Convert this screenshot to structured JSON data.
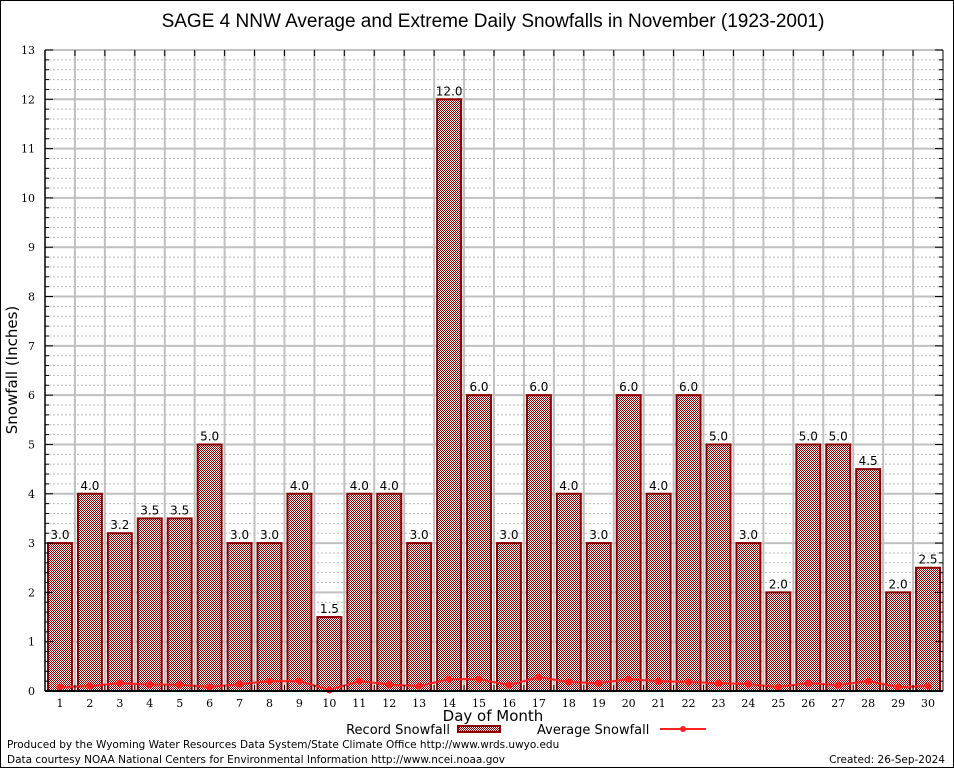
{
  "chart_data": {
    "type": "bar",
    "title": "SAGE 4 NNW Average and Extreme Daily Snowfalls in November (1923-2001)",
    "xlabel": "Day of Month",
    "ylabel": "Snowfall (Inches)",
    "ylim": [
      0,
      13
    ],
    "yticks": [
      "0",
      "1",
      "2",
      "3",
      "4",
      "5",
      "6",
      "7",
      "8",
      "9",
      "10",
      "11",
      "12",
      "13"
    ],
    "grid": true,
    "legend_position": "bottom",
    "categories": [
      "1",
      "2",
      "3",
      "4",
      "5",
      "6",
      "7",
      "8",
      "9",
      "10",
      "11",
      "12",
      "13",
      "14",
      "15",
      "16",
      "17",
      "18",
      "19",
      "20",
      "21",
      "22",
      "23",
      "24",
      "25",
      "26",
      "27",
      "28",
      "29",
      "30"
    ],
    "series": [
      {
        "name": "Record Snowfall",
        "type": "bar",
        "color": "#8b0000",
        "values": [
          3.0,
          4.0,
          3.2,
          3.5,
          3.5,
          5.0,
          3.0,
          3.0,
          4.0,
          1.5,
          4.0,
          4.0,
          3.0,
          12.0,
          6.0,
          3.0,
          6.0,
          4.0,
          3.0,
          6.0,
          4.0,
          6.0,
          5.0,
          3.0,
          2.0,
          5.0,
          5.0,
          4.5,
          2.0,
          2.5
        ],
        "labels": [
          "3.0",
          "4.0",
          "3.2",
          "3.5",
          "3.5",
          "5.0",
          "3.0",
          "3.0",
          "4.0",
          "1.5",
          "4.0",
          "4.0",
          "3.0",
          "12.0",
          "6.0",
          "3.0",
          "6.0",
          "4.0",
          "3.0",
          "6.0",
          "4.0",
          "6.0",
          "5.0",
          "3.0",
          "2.0",
          "5.0",
          "5.0",
          "4.5",
          "2.0",
          "2.5"
        ]
      },
      {
        "name": "Average Snowfall",
        "type": "line",
        "color": "#ff2020",
        "values": [
          0.08,
          0.1,
          0.16,
          0.13,
          0.13,
          0.08,
          0.14,
          0.2,
          0.2,
          0.02,
          0.2,
          0.13,
          0.1,
          0.24,
          0.24,
          0.12,
          0.28,
          0.18,
          0.16,
          0.24,
          0.2,
          0.18,
          0.16,
          0.14,
          0.08,
          0.16,
          0.12,
          0.2,
          0.08,
          0.1
        ]
      }
    ]
  },
  "footer": {
    "produced_by": "Produced by the Wyoming Water Resources Data System/State Climate Office http://www.wrds.uwyo.edu",
    "data_courtesy": "Data courtesy NOAA National Centers for Environmental Information http://www.ncei.noaa.gov",
    "created": "Created:  26-Sep-2024"
  }
}
